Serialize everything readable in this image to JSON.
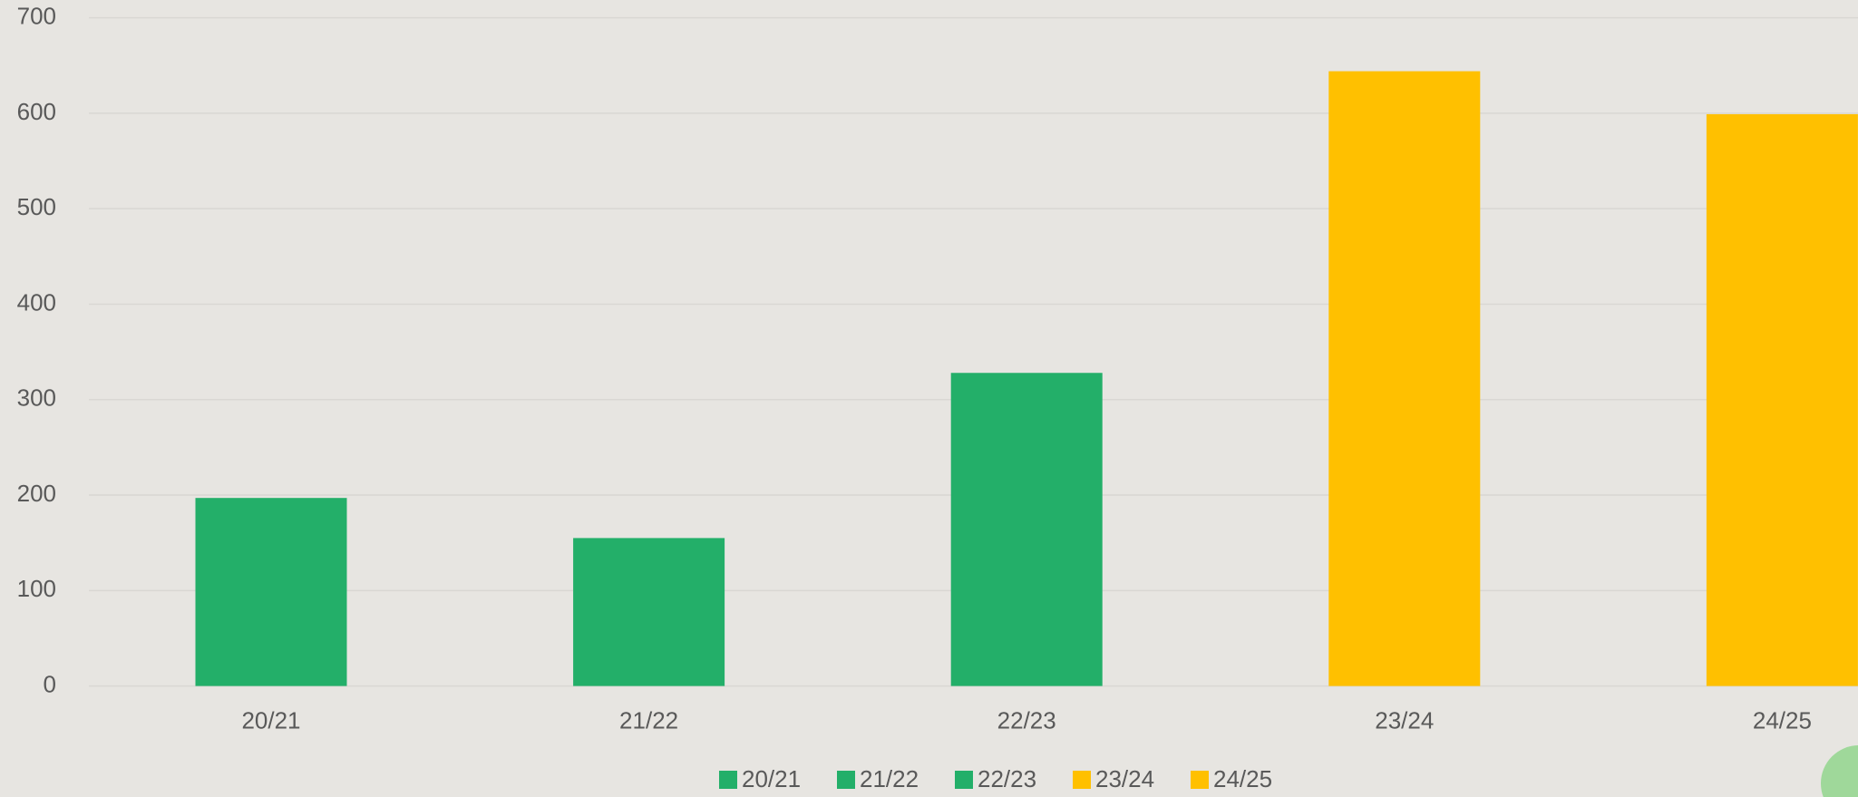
{
  "chart_data": {
    "type": "bar",
    "categories": [
      "20/21",
      "21/22",
      "22/23",
      "23/24",
      "24/25"
    ],
    "values": [
      197,
      155,
      328,
      644,
      599
    ],
    "colors": [
      "#23af69",
      "#23af69",
      "#23af69",
      "#ffc000",
      "#ffc000"
    ],
    "ylim": [
      0,
      700
    ],
    "yticks": [
      0,
      100,
      200,
      300,
      400,
      500,
      600,
      700
    ],
    "grid": true
  }
}
